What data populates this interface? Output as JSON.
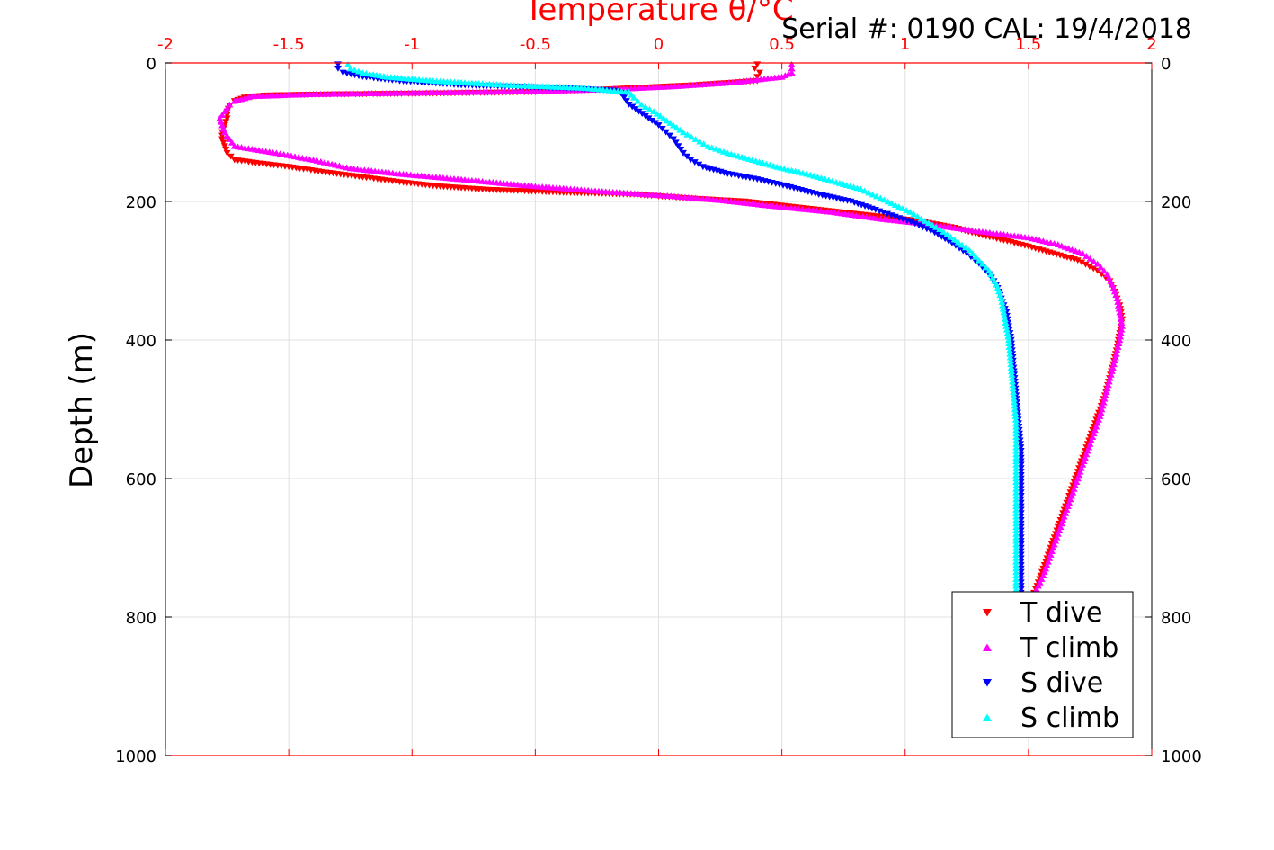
{
  "chart_data": {
    "type": "scatter",
    "title": "Serial #: 0190  CAL: 19/4/2018",
    "xlabel": "Temperature θ/°C",
    "ylabel": "Depth (m)",
    "xlim": [
      -2,
      2
    ],
    "ylim": [
      0,
      1000
    ],
    "y_reversed": true,
    "x_ticks": [
      "-2",
      "-1.5",
      "-1",
      "-0.5",
      "0",
      "0.5",
      "1",
      "1.5",
      "2"
    ],
    "y_ticks": [
      "0",
      "200",
      "400",
      "600",
      "800",
      "1000"
    ],
    "grid": true,
    "legend_position": "bottom-right",
    "colors": {
      "x_axis": "#ff0000",
      "T dive": "#ff0000",
      "T climb": "#ff00ff",
      "S dive": "#0000ff",
      "S climb": "#00ffff"
    },
    "series": [
      {
        "name": "T dive",
        "marker": "triangle-down",
        "color": "#ff0000",
        "points": [
          [
            0.4,
            2
          ],
          [
            0.39,
            8
          ],
          [
            0.41,
            14
          ],
          [
            0.4,
            20
          ],
          [
            0.4,
            26
          ],
          [
            0.15,
            32
          ],
          [
            -0.2,
            38
          ],
          [
            -0.5,
            42
          ],
          [
            -0.9,
            44
          ],
          [
            -1.2,
            45
          ],
          [
            -1.45,
            46
          ],
          [
            -1.6,
            47
          ],
          [
            -1.68,
            50
          ],
          [
            -1.72,
            55
          ],
          [
            -1.74,
            62
          ],
          [
            -1.75,
            70
          ],
          [
            -1.75,
            80
          ],
          [
            -1.76,
            90
          ],
          [
            -1.77,
            100
          ],
          [
            -1.77,
            110
          ],
          [
            -1.76,
            120
          ],
          [
            -1.75,
            130
          ],
          [
            -1.72,
            140
          ],
          [
            -1.62,
            145
          ],
          [
            -1.5,
            150
          ],
          [
            -1.35,
            158
          ],
          [
            -1.2,
            165
          ],
          [
            -1.05,
            172
          ],
          [
            -0.9,
            178
          ],
          [
            -0.7,
            183
          ],
          [
            -0.4,
            187
          ],
          [
            -0.1,
            190
          ],
          [
            0.1,
            195
          ],
          [
            0.35,
            200
          ],
          [
            0.6,
            210
          ],
          [
            0.85,
            220
          ],
          [
            1.05,
            228
          ],
          [
            1.2,
            238
          ],
          [
            1.3,
            248
          ],
          [
            1.4,
            256
          ],
          [
            1.5,
            265
          ],
          [
            1.6,
            275
          ],
          [
            1.7,
            285
          ],
          [
            1.78,
            300
          ],
          [
            1.83,
            315
          ],
          [
            1.85,
            330
          ],
          [
            1.87,
            350
          ],
          [
            1.88,
            370
          ],
          [
            1.87,
            390
          ],
          [
            1.86,
            410
          ],
          [
            1.84,
            440
          ],
          [
            1.81,
            480
          ],
          [
            1.77,
            520
          ],
          [
            1.73,
            560
          ],
          [
            1.69,
            600
          ],
          [
            1.65,
            640
          ],
          [
            1.61,
            680
          ],
          [
            1.57,
            720
          ],
          [
            1.53,
            760
          ],
          [
            1.5,
            780
          ]
        ]
      },
      {
        "name": "T climb",
        "marker": "triangle-up",
        "color": "#ff00ff",
        "points": [
          [
            0.54,
            2
          ],
          [
            0.54,
            8
          ],
          [
            0.54,
            14
          ],
          [
            0.5,
            20
          ],
          [
            0.3,
            28
          ],
          [
            0.05,
            34
          ],
          [
            -0.2,
            38
          ],
          [
            -0.55,
            41
          ],
          [
            -1.0,
            43
          ],
          [
            -1.4,
            45
          ],
          [
            -1.65,
            48
          ],
          [
            -1.72,
            55
          ],
          [
            -1.74,
            60
          ],
          [
            -1.76,
            70
          ],
          [
            -1.78,
            80
          ],
          [
            -1.77,
            90
          ],
          [
            -1.76,
            100
          ],
          [
            -1.74,
            110
          ],
          [
            -1.72,
            120
          ],
          [
            -1.55,
            130
          ],
          [
            -1.4,
            140
          ],
          [
            -1.25,
            152
          ],
          [
            -1.05,
            160
          ],
          [
            -0.8,
            168
          ],
          [
            -0.5,
            178
          ],
          [
            -0.2,
            186
          ],
          [
            0.05,
            192
          ],
          [
            0.25,
            198
          ],
          [
            0.45,
            206
          ],
          [
            0.7,
            215
          ],
          [
            0.9,
            225
          ],
          [
            1.1,
            233
          ],
          [
            1.3,
            243
          ],
          [
            1.5,
            252
          ],
          [
            1.62,
            262
          ],
          [
            1.72,
            275
          ],
          [
            1.78,
            290
          ],
          [
            1.82,
            305
          ],
          [
            1.84,
            320
          ],
          [
            1.86,
            340
          ],
          [
            1.87,
            360
          ],
          [
            1.88,
            380
          ],
          [
            1.87,
            400
          ],
          [
            1.85,
            430
          ],
          [
            1.82,
            470
          ],
          [
            1.79,
            510
          ],
          [
            1.75,
            550
          ],
          [
            1.71,
            590
          ],
          [
            1.67,
            630
          ],
          [
            1.63,
            670
          ],
          [
            1.59,
            710
          ],
          [
            1.56,
            740
          ],
          [
            1.52,
            770
          ]
        ]
      },
      {
        "name": "S dive",
        "marker": "triangle-down",
        "color": "#0000ff",
        "points": [
          [
            -1.3,
            2
          ],
          [
            -1.3,
            8
          ],
          [
            -1.28,
            14
          ],
          [
            -1.2,
            20
          ],
          [
            -1.05,
            26
          ],
          [
            -0.8,
            32
          ],
          [
            -0.4,
            36
          ],
          [
            -0.18,
            40
          ],
          [
            -0.14,
            45
          ],
          [
            -0.14,
            50
          ],
          [
            -0.12,
            60
          ],
          [
            -0.08,
            70
          ],
          [
            -0.04,
            80
          ],
          [
            0.0,
            90
          ],
          [
            0.03,
            100
          ],
          [
            0.06,
            110
          ],
          [
            0.08,
            120
          ],
          [
            0.1,
            130
          ],
          [
            0.13,
            140
          ],
          [
            0.18,
            150
          ],
          [
            0.28,
            160
          ],
          [
            0.4,
            168
          ],
          [
            0.52,
            178
          ],
          [
            0.65,
            190
          ],
          [
            0.78,
            200
          ],
          [
            0.88,
            212
          ],
          [
            0.96,
            222
          ],
          [
            1.04,
            232
          ],
          [
            1.12,
            245
          ],
          [
            1.19,
            260
          ],
          [
            1.25,
            275
          ],
          [
            1.3,
            290
          ],
          [
            1.34,
            305
          ],
          [
            1.37,
            320
          ],
          [
            1.39,
            340
          ],
          [
            1.41,
            360
          ],
          [
            1.42,
            380
          ],
          [
            1.43,
            400
          ],
          [
            1.44,
            440
          ],
          [
            1.45,
            480
          ],
          [
            1.46,
            520
          ],
          [
            1.47,
            560
          ],
          [
            1.47,
            600
          ],
          [
            1.47,
            640
          ],
          [
            1.47,
            680
          ],
          [
            1.47,
            720
          ],
          [
            1.47,
            760
          ],
          [
            1.47,
            780
          ]
        ]
      },
      {
        "name": "S climb",
        "marker": "triangle-up",
        "color": "#00ffff",
        "points": [
          [
            -1.26,
            2
          ],
          [
            -1.25,
            8
          ],
          [
            -1.2,
            14
          ],
          [
            -1.1,
            20
          ],
          [
            -0.9,
            26
          ],
          [
            -0.6,
            32
          ],
          [
            -0.3,
            36
          ],
          [
            -0.12,
            42
          ],
          [
            -0.1,
            50
          ],
          [
            -0.07,
            60
          ],
          [
            -0.02,
            70
          ],
          [
            0.02,
            80
          ],
          [
            0.06,
            90
          ],
          [
            0.1,
            100
          ],
          [
            0.15,
            110
          ],
          [
            0.2,
            120
          ],
          [
            0.28,
            130
          ],
          [
            0.38,
            140
          ],
          [
            0.48,
            150
          ],
          [
            0.6,
            160
          ],
          [
            0.72,
            172
          ],
          [
            0.82,
            182
          ],
          [
            0.9,
            195
          ],
          [
            0.96,
            205
          ],
          [
            1.02,
            215
          ],
          [
            1.08,
            228
          ],
          [
            1.14,
            240
          ],
          [
            1.2,
            255
          ],
          [
            1.26,
            270
          ],
          [
            1.3,
            285
          ],
          [
            1.34,
            300
          ],
          [
            1.37,
            320
          ],
          [
            1.39,
            340
          ],
          [
            1.4,
            360
          ],
          [
            1.41,
            380
          ],
          [
            1.42,
            400
          ],
          [
            1.43,
            440
          ],
          [
            1.44,
            480
          ],
          [
            1.45,
            520
          ],
          [
            1.45,
            560
          ],
          [
            1.45,
            600
          ],
          [
            1.45,
            640
          ],
          [
            1.45,
            680
          ],
          [
            1.45,
            720
          ],
          [
            1.45,
            760
          ],
          [
            1.45,
            775
          ]
        ]
      }
    ]
  }
}
